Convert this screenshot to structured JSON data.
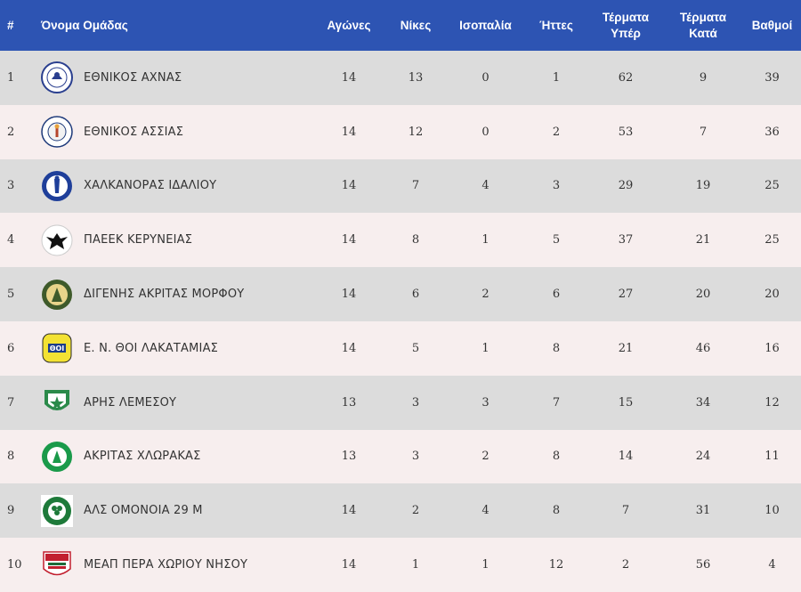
{
  "header": {
    "pos": "#",
    "team": "Όνομα Ομάδας",
    "played": "Αγώνες",
    "wins": "Νίκες",
    "draws": "Ισοπαλία",
    "losses": "Ήττες",
    "goals_for": "Τέρματα Υπέρ",
    "goals_against": "Τέρματα Κατά",
    "points": "Βαθμοί"
  },
  "colors": {
    "header_bg": "#2d54b3",
    "row_odd": "#dcdcdc",
    "row_even": "#f7eeee"
  },
  "rows": [
    {
      "pos": "1",
      "team": "ΕΘΝΙΚΟΣ ΑΧΝΑΣ",
      "logo": "ethnikos-achnas-crest-icon",
      "played": "14",
      "wins": "13",
      "draws": "0",
      "losses": "1",
      "gf": "62",
      "ga": "9",
      "pts": "39"
    },
    {
      "pos": "2",
      "team": "ΕΘΝΙΚΟΣ ΑΣΣΙΑΣ",
      "logo": "ethnikos-assias-crest-icon",
      "played": "14",
      "wins": "12",
      "draws": "0",
      "losses": "2",
      "gf": "53",
      "ga": "7",
      "pts": "36"
    },
    {
      "pos": "3",
      "team": "ΧΑΛΚΑΝΟΡΑΣ ΙΔΑΛΙΟΥ",
      "logo": "chalkanoras-crest-icon",
      "played": "14",
      "wins": "7",
      "draws": "4",
      "losses": "3",
      "gf": "29",
      "ga": "19",
      "pts": "25"
    },
    {
      "pos": "4",
      "team": "ΠΑΕΕΚ ΚΕΡΥΝΕΙΑΣ",
      "logo": "paeek-crest-icon",
      "played": "14",
      "wins": "8",
      "draws": "1",
      "losses": "5",
      "gf": "37",
      "ga": "21",
      "pts": "25"
    },
    {
      "pos": "5",
      "team": "ΔΙΓΕΝΗΣ ΑΚΡΙΤΑΣ ΜΟΡΦΟΥ",
      "logo": "digenis-crest-icon",
      "played": "14",
      "wins": "6",
      "draws": "2",
      "losses": "6",
      "gf": "27",
      "ga": "20",
      "pts": "20"
    },
    {
      "pos": "6",
      "team": "Ε. Ν. ΘΟΙ ΛΑΚΑΤΑΜΙΑΣ",
      "logo": "thoi-crest-icon",
      "played": "14",
      "wins": "5",
      "draws": "1",
      "losses": "8",
      "gf": "21",
      "ga": "46",
      "pts": "16"
    },
    {
      "pos": "7",
      "team": "ΑΡΗΣ ΛΕΜΕΣΟΥ",
      "logo": "aris-crest-icon",
      "played": "13",
      "wins": "3",
      "draws": "3",
      "losses": "7",
      "gf": "15",
      "ga": "34",
      "pts": "12"
    },
    {
      "pos": "8",
      "team": "ΑΚΡΙΤΑΣ ΧΛΩΡΑΚΑΣ",
      "logo": "akritas-crest-icon",
      "played": "13",
      "wins": "3",
      "draws": "2",
      "losses": "8",
      "gf": "14",
      "ga": "24",
      "pts": "11"
    },
    {
      "pos": "9",
      "team": "ΑΛΣ ΟΜΟΝΟΙΑ 29 Μ",
      "logo": "omonoia-crest-icon",
      "played": "14",
      "wins": "2",
      "draws": "4",
      "losses": "8",
      "gf": "7",
      "ga": "31",
      "pts": "10"
    },
    {
      "pos": "10",
      "team": "ΜΕΑΠ ΠΕΡΑ ΧΩΡΙΟΥ ΝΗΣΟΥ",
      "logo": "meap-crest-icon",
      "played": "14",
      "wins": "1",
      "draws": "1",
      "losses": "12",
      "gf": "2",
      "ga": "56",
      "pts": "4"
    }
  ]
}
